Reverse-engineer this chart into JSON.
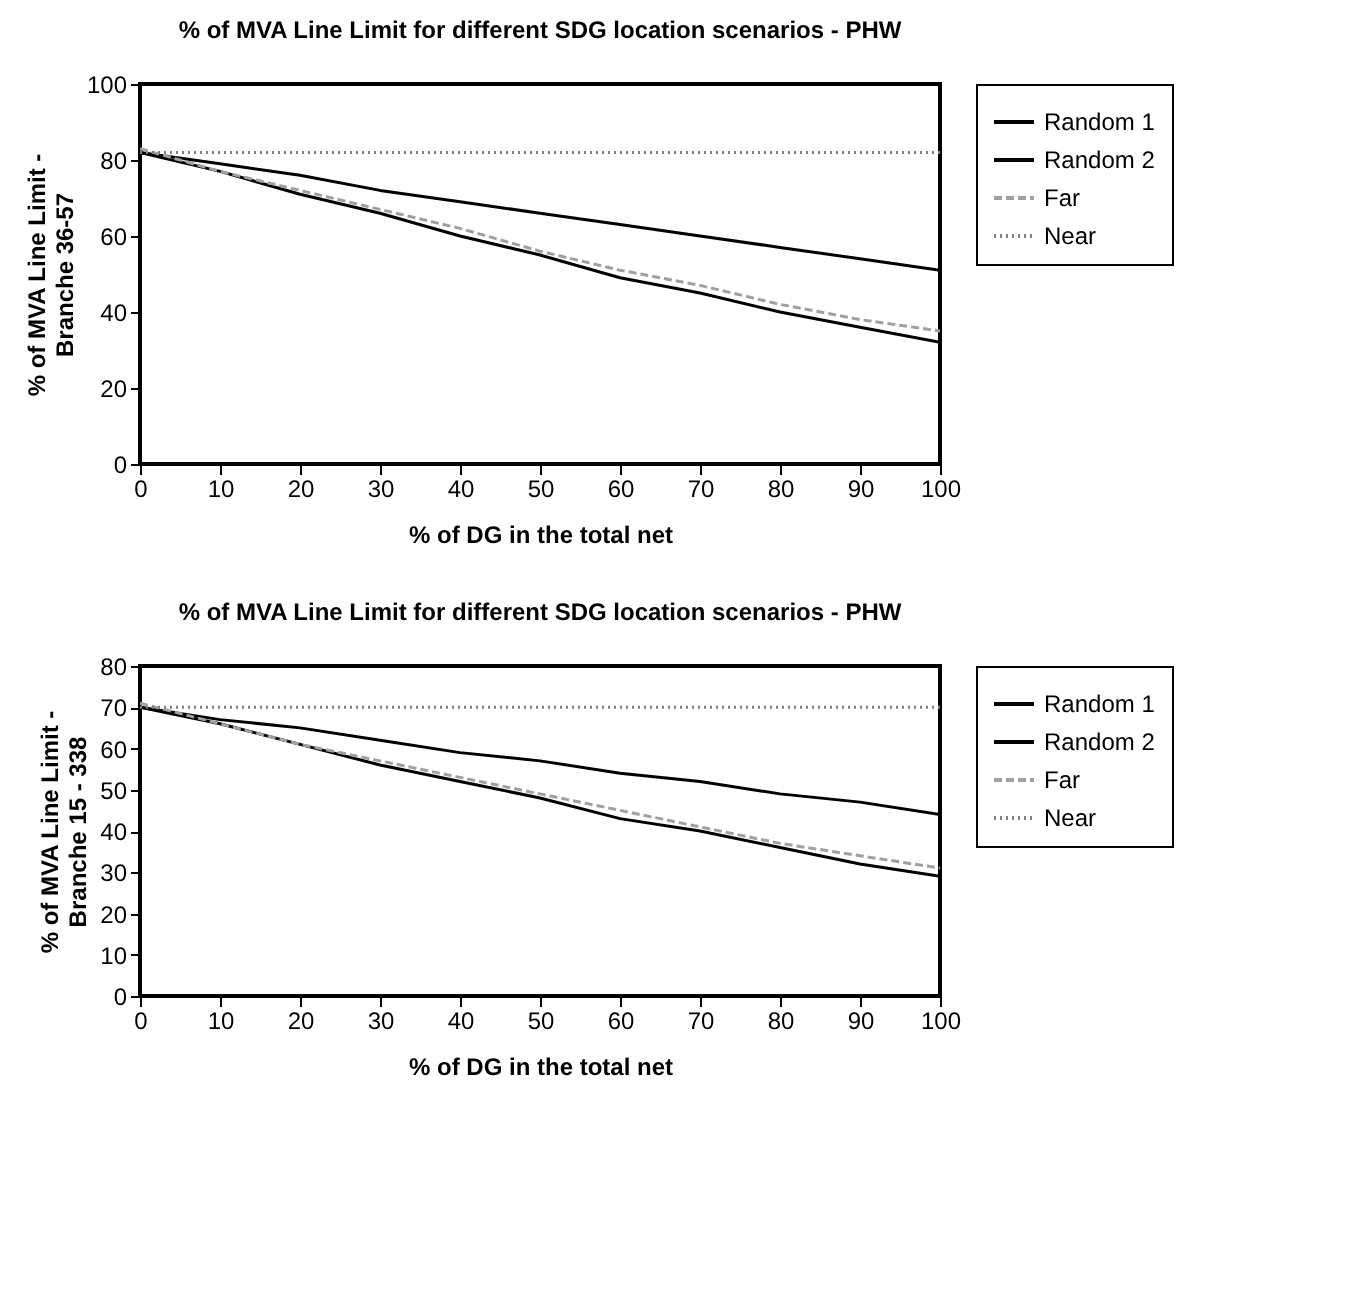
{
  "chart_data": [
    {
      "type": "line",
      "title": "% of MVA Line Limit for different SDG location scenarios - PHW",
      "xlabel": "% of DG in the total net",
      "ylabel": "% of MVA Line Limit - Branche 36-57",
      "x": [
        0,
        10,
        20,
        30,
        40,
        50,
        60,
        70,
        80,
        90,
        100
      ],
      "xlim": [
        0,
        100
      ],
      "xticks": [
        0,
        10,
        20,
        30,
        40,
        50,
        60,
        70,
        80,
        90,
        100
      ],
      "ylim": [
        0,
        100
      ],
      "yticks": [
        0,
        20,
        40,
        60,
        80,
        100
      ],
      "grid": false,
      "legend": "right",
      "marker": "none",
      "series": [
        {
          "name": "Random 1",
          "color": "#000000",
          "line_style": "solid",
          "values": [
            82,
            77,
            71,
            66,
            60,
            55,
            49,
            45,
            40,
            36,
            32
          ]
        },
        {
          "name": "Random 2",
          "color": "#000000",
          "line_style": "solid",
          "values": [
            82,
            79,
            76,
            72,
            69,
            66,
            63,
            60,
            57,
            54,
            51
          ]
        },
        {
          "name": "Far",
          "color": "#a0a0a0",
          "line_style": "dashed",
          "values": [
            83,
            77,
            72,
            67,
            62,
            56,
            51,
            47,
            42,
            38,
            35
          ]
        },
        {
          "name": "Near",
          "color": "#808080",
          "line_style": "dotted",
          "values": [
            82,
            82,
            82,
            82,
            82,
            82,
            82,
            82,
            82,
            82,
            82
          ]
        }
      ]
    },
    {
      "type": "line",
      "title": "% of MVA Line Limit for different SDG location scenarios - PHW",
      "xlabel": "% of DG in the total net",
      "ylabel": "% of MVA Line Limit - Branche 15 - 338",
      "x": [
        0,
        10,
        20,
        30,
        40,
        50,
        60,
        70,
        80,
        90,
        100
      ],
      "xlim": [
        0,
        100
      ],
      "xticks": [
        0,
        10,
        20,
        30,
        40,
        50,
        60,
        70,
        80,
        90,
        100
      ],
      "ylim": [
        0,
        80
      ],
      "yticks": [
        0,
        10,
        20,
        30,
        40,
        50,
        60,
        70,
        80
      ],
      "grid": false,
      "legend": "right",
      "marker": "none",
      "series": [
        {
          "name": "Random 1",
          "color": "#000000",
          "line_style": "solid",
          "values": [
            70,
            66,
            61,
            56,
            52,
            48,
            43,
            40,
            36,
            32,
            29
          ]
        },
        {
          "name": "Random 2",
          "color": "#000000",
          "line_style": "solid",
          "values": [
            70,
            67,
            65,
            62,
            59,
            57,
            54,
            52,
            49,
            47,
            44
          ]
        },
        {
          "name": "Far",
          "color": "#a0a0a0",
          "line_style": "dashed",
          "values": [
            71,
            66,
            61,
            57,
            53,
            49,
            45,
            41,
            37,
            34,
            31
          ]
        },
        {
          "name": "Near",
          "color": "#808080",
          "line_style": "dotted",
          "values": [
            70,
            70,
            70,
            70,
            70,
            70,
            70,
            70,
            70,
            70,
            70
          ]
        }
      ]
    }
  ]
}
